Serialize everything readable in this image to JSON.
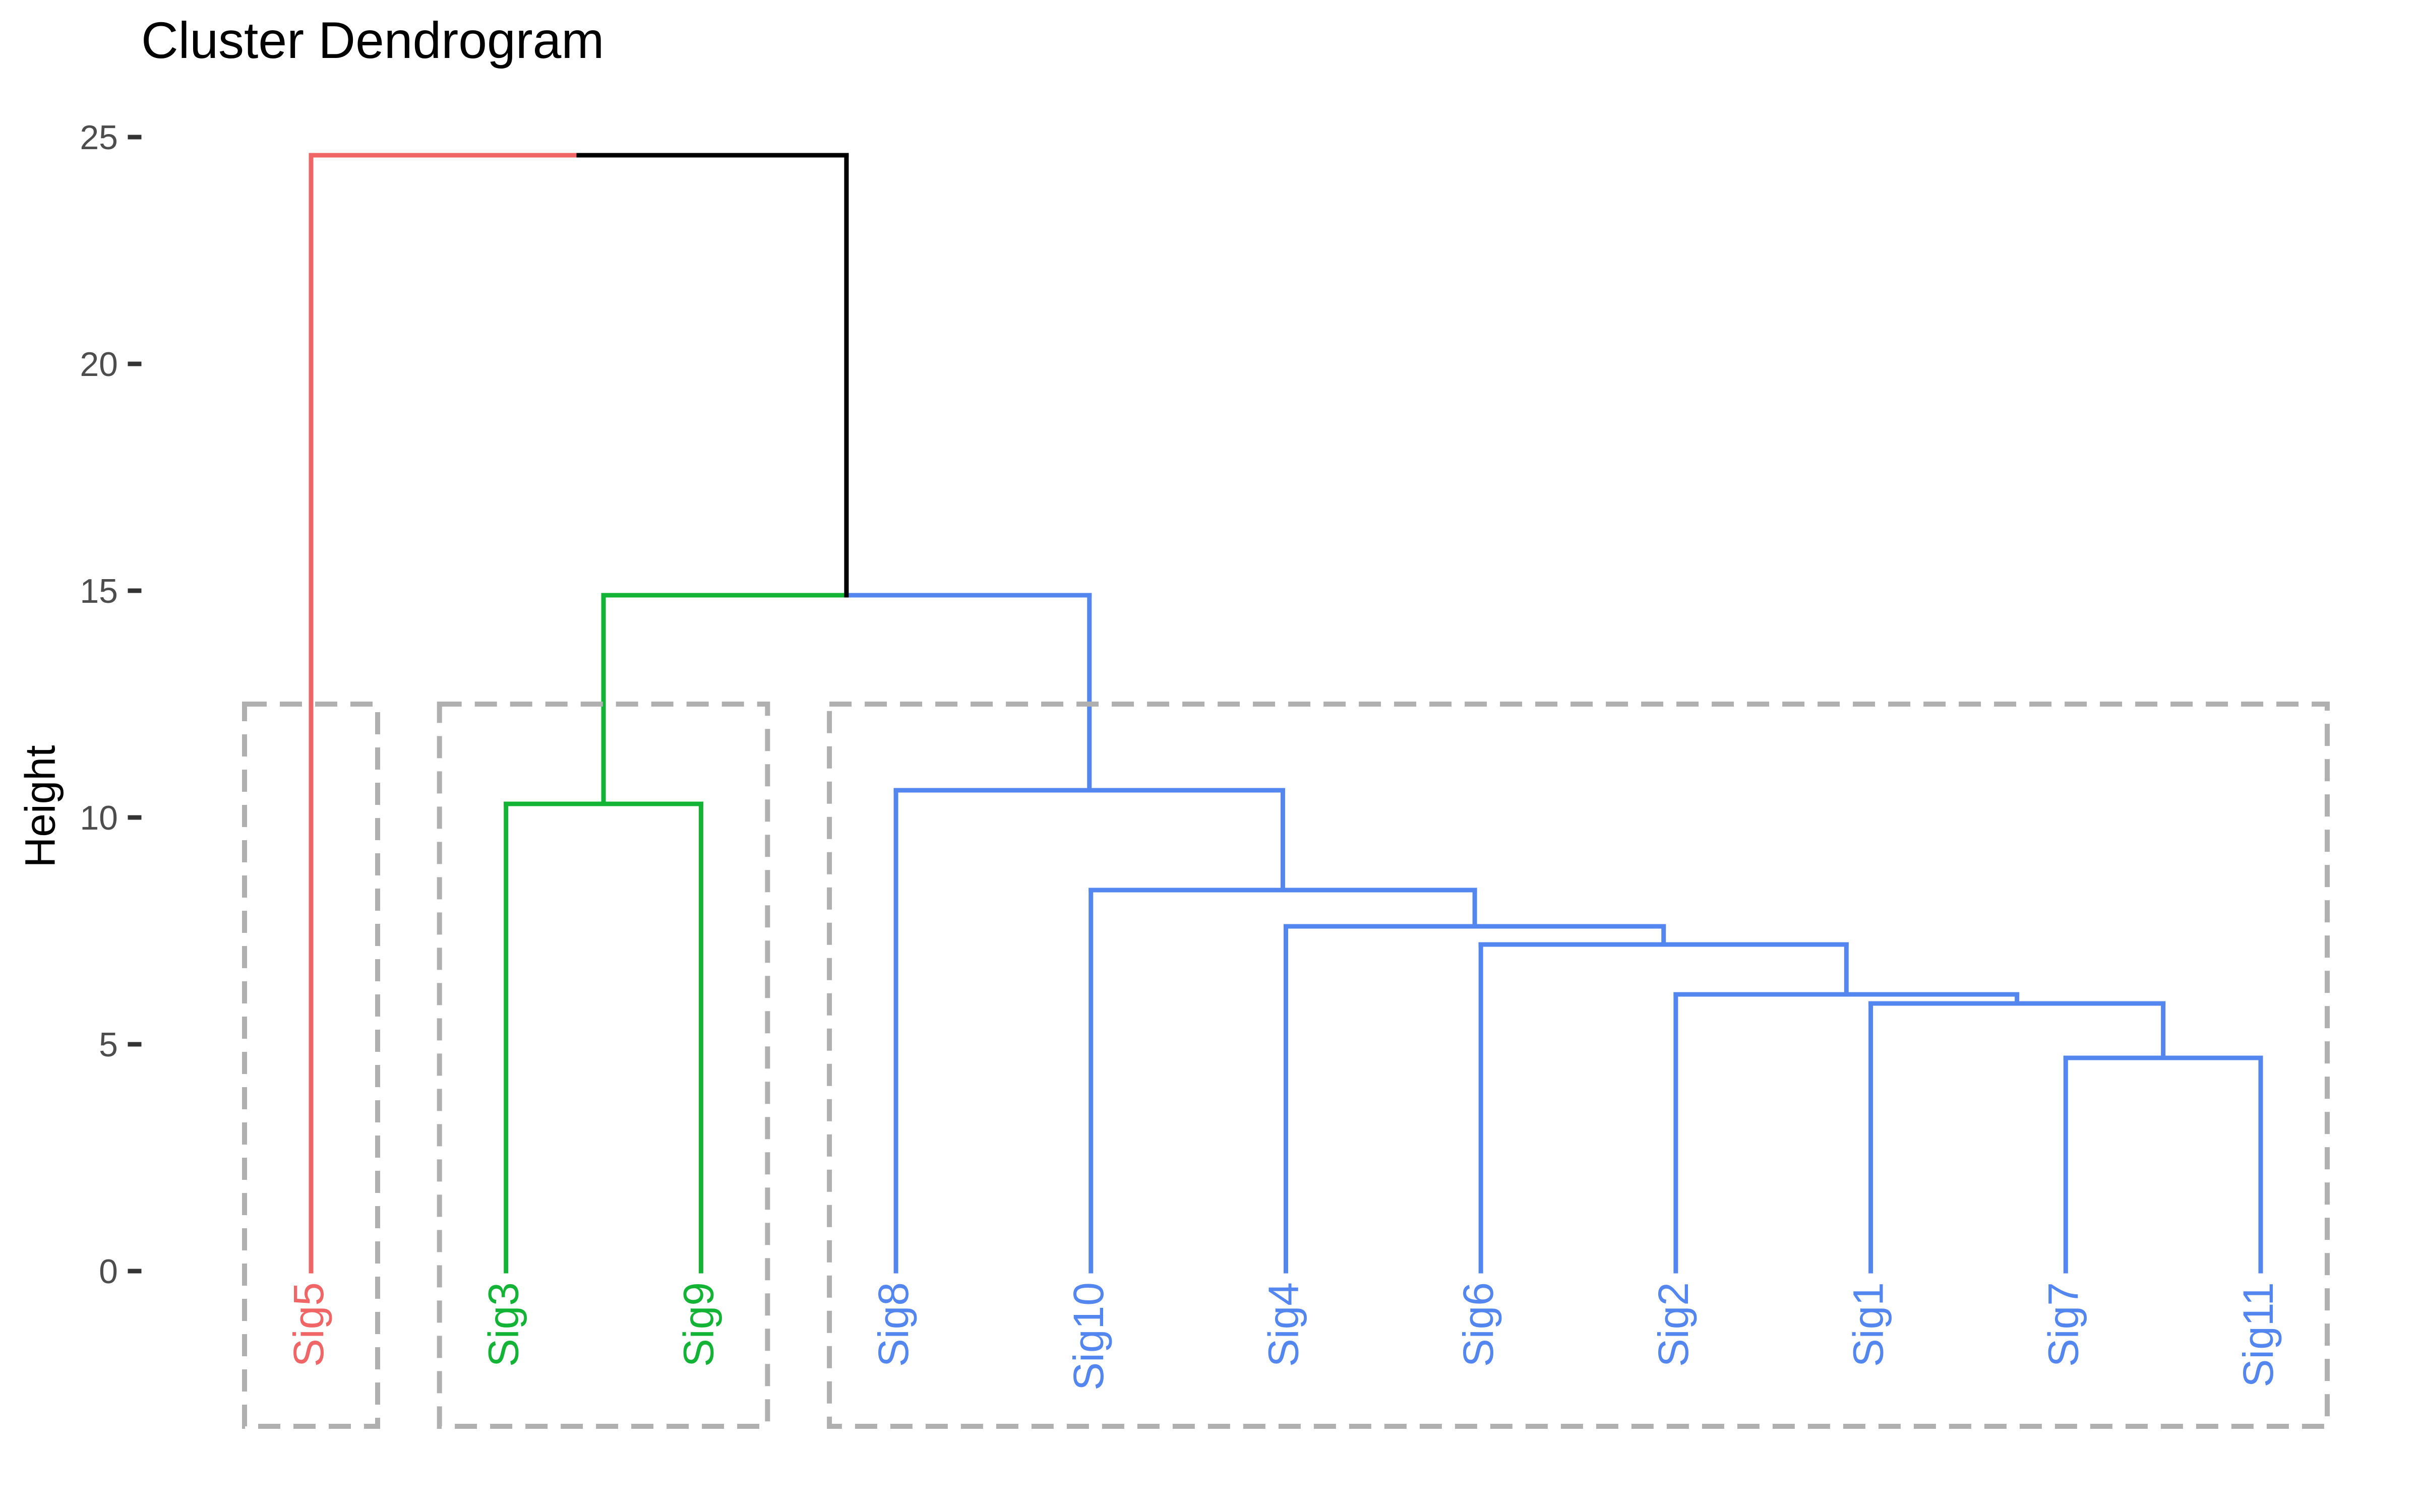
{
  "chart_data": {
    "type": "dendrogram",
    "title": "Cluster Dendrogram",
    "ylabel": "Height",
    "xlabel": "",
    "ylim": [
      0,
      25
    ],
    "y_ticks": [
      "0",
      "5",
      "10",
      "15",
      "20",
      "25"
    ],
    "grid": false,
    "k_clusters": 3,
    "leaf_order": [
      "Sig5",
      "Sig3",
      "Sig9",
      "Sig8",
      "Sig10",
      "Sig4",
      "Sig6",
      "Sig2",
      "Sig1",
      "Sig7",
      "Sig11"
    ],
    "merges": [
      {
        "left": "Sig7",
        "right": "Sig11",
        "height": 4.7
      },
      {
        "left": "Sig1",
        "right": "Sig7+Sig11",
        "height": 5.9
      },
      {
        "left": "Sig2",
        "right": "Sig1+Sig7+Sig11",
        "height": 6.1
      },
      {
        "left": "Sig6",
        "right": "Sig2+Sig1+Sig7+Sig11",
        "height": 7.2
      },
      {
        "left": "Sig4",
        "right": "Sig6+Sig2+Sig1+Sig7+Sig11",
        "height": 7.6
      },
      {
        "left": "Sig10",
        "right": "Sig4+Sig6+Sig2+Sig1+Sig7+Sig11",
        "height": 8.4
      },
      {
        "left": "Sig8",
        "right": "Sig10+Sig4+Sig6+Sig2+Sig1+Sig7+Sig11",
        "height": 10.6
      },
      {
        "left": "Sig3",
        "right": "Sig9",
        "height": 10.3
      },
      {
        "left": "Sig3+Sig9",
        "right": "blue-cluster",
        "height": 14.9
      },
      {
        "left": "Sig5",
        "right": "green+blue",
        "height": 24.6
      }
    ],
    "clusters": [
      {
        "leaves": [
          "Sig5"
        ],
        "color": "#F06565"
      },
      {
        "leaves": [
          "Sig3",
          "Sig9"
        ],
        "color": "#13B336"
      },
      {
        "leaves": [
          "Sig8",
          "Sig10",
          "Sig4",
          "Sig6",
          "Sig2",
          "Sig1",
          "Sig7",
          "Sig11"
        ],
        "color": "#5387EF"
      }
    ],
    "cut_height": 12.5,
    "root_link_color": "#000000",
    "box_color": "#B0B0B0"
  }
}
